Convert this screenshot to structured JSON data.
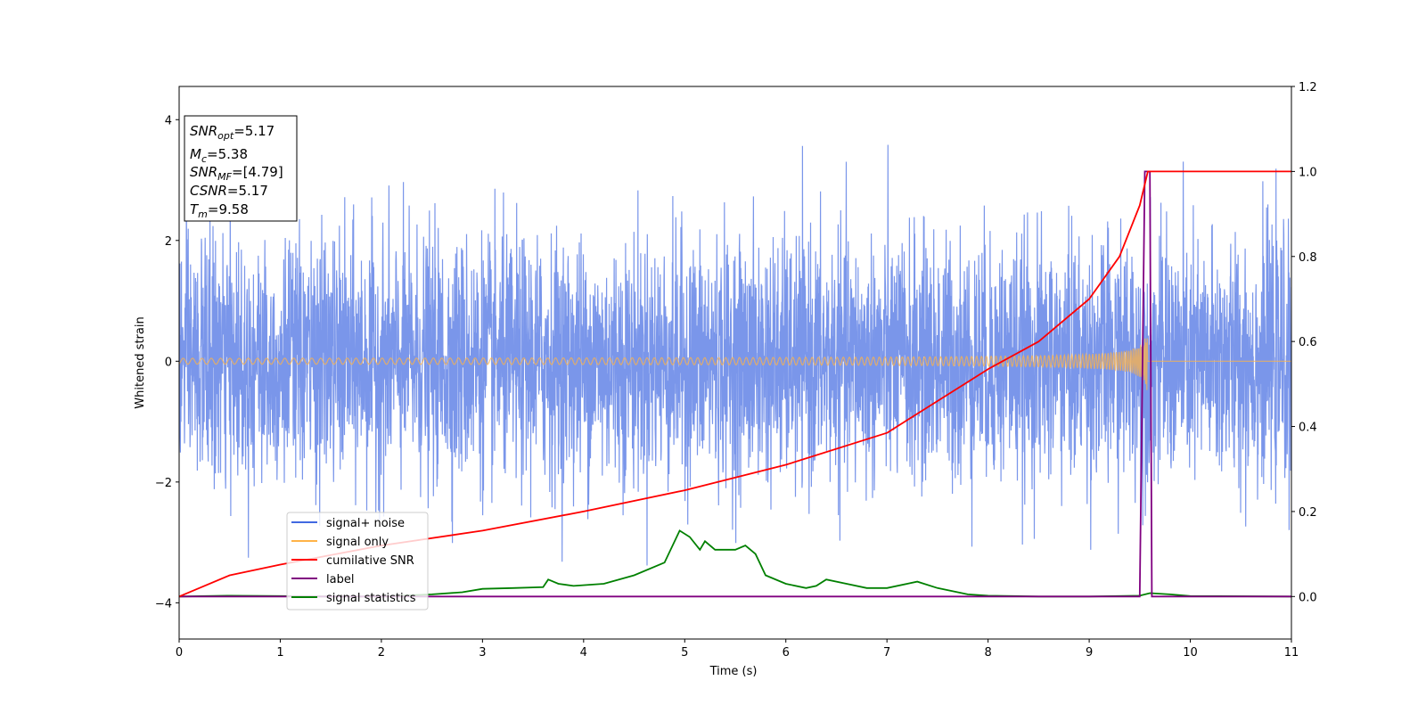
{
  "chart_data": {
    "type": "line",
    "xlabel": "Time (s)",
    "ylabel": "Whitened strain",
    "xlim": [
      0,
      11
    ],
    "ylim_left": [
      -4.6,
      4.55
    ],
    "ylim_right": [
      -0.1,
      1.2
    ],
    "x_ticks": [
      "0",
      "1",
      "2",
      "3",
      "4",
      "5",
      "6",
      "7",
      "8",
      "9",
      "10",
      "11"
    ],
    "y_ticks_left": [
      "−4",
      "−2",
      "0",
      "2",
      "4"
    ],
    "y_ticks_right": [
      "0.0",
      "0.2",
      "0.4",
      "0.6",
      "0.8",
      "1.0",
      "1.2"
    ],
    "legend_position": "lower-left",
    "grid": false,
    "series": [
      {
        "name": "signal+ noise",
        "axis": "left",
        "color": "#4169e1",
        "description": "whitened noise, approx. zero mean, unit std, peaks to about ±4",
        "noise_sigma": 1.0,
        "points_per_second": 400
      },
      {
        "name": "signal only",
        "axis": "left",
        "color": "#ffb347",
        "description": "chirp ending near t = 9.58 s, amplitude growing from ~0.03 to ~0.6",
        "amplitude_start": 0.03,
        "amplitude_end": 0.6,
        "t_merge": 9.58
      },
      {
        "name": "cumilative SNR",
        "axis": "right",
        "color": "#ff0000",
        "points": [
          [
            0,
            0.0
          ],
          [
            0.5,
            0.05
          ],
          [
            1,
            0.075
          ],
          [
            2,
            0.12
          ],
          [
            3,
            0.155
          ],
          [
            4,
            0.2
          ],
          [
            5,
            0.25
          ],
          [
            6,
            0.31
          ],
          [
            7,
            0.385
          ],
          [
            8,
            0.535
          ],
          [
            8.5,
            0.6
          ],
          [
            9,
            0.7
          ],
          [
            9.3,
            0.8
          ],
          [
            9.5,
            0.92
          ],
          [
            9.58,
            1.0
          ],
          [
            11,
            1.0
          ]
        ]
      },
      {
        "name": "label",
        "axis": "right",
        "color": "#800080",
        "points": [
          [
            0,
            0.0
          ],
          [
            9.5,
            0.0
          ],
          [
            9.55,
            1.0
          ],
          [
            9.6,
            1.0
          ],
          [
            9.62,
            0.0
          ],
          [
            11,
            0.0
          ]
        ]
      },
      {
        "name": "signal statistics",
        "axis": "right",
        "color": "#008000",
        "points": [
          [
            0,
            0.0
          ],
          [
            0.5,
            0.002
          ],
          [
            1.0,
            0.001
          ],
          [
            1.5,
            0.0
          ],
          [
            2.0,
            0.0
          ],
          [
            2.5,
            0.005
          ],
          [
            2.8,
            0.01
          ],
          [
            3.0,
            0.018
          ],
          [
            3.3,
            0.02
          ],
          [
            3.6,
            0.022
          ],
          [
            3.65,
            0.04
          ],
          [
            3.75,
            0.03
          ],
          [
            3.9,
            0.025
          ],
          [
            4.2,
            0.03
          ],
          [
            4.5,
            0.05
          ],
          [
            4.8,
            0.08
          ],
          [
            4.95,
            0.155
          ],
          [
            5.05,
            0.14
          ],
          [
            5.15,
            0.11
          ],
          [
            5.2,
            0.13
          ],
          [
            5.3,
            0.11
          ],
          [
            5.5,
            0.11
          ],
          [
            5.6,
            0.12
          ],
          [
            5.7,
            0.1
          ],
          [
            5.8,
            0.05
          ],
          [
            6.0,
            0.03
          ],
          [
            6.2,
            0.02
          ],
          [
            6.3,
            0.025
          ],
          [
            6.4,
            0.04
          ],
          [
            6.6,
            0.03
          ],
          [
            6.8,
            0.02
          ],
          [
            7.0,
            0.02
          ],
          [
            7.2,
            0.03
          ],
          [
            7.3,
            0.035
          ],
          [
            7.5,
            0.02
          ],
          [
            7.8,
            0.005
          ],
          [
            8.0,
            0.002
          ],
          [
            8.5,
            0.0
          ],
          [
            9.0,
            0.0
          ],
          [
            9.5,
            0.002
          ],
          [
            9.6,
            0.008
          ],
          [
            9.8,
            0.005
          ],
          [
            10.0,
            0.001
          ],
          [
            11.0,
            0.0
          ]
        ]
      }
    ]
  },
  "stats_box": {
    "snr_opt": {
      "main": "SNR",
      "sub": "opt",
      "value": "=5.17"
    },
    "mc": {
      "main": "M",
      "sub": "c",
      "value": "=5.38"
    },
    "snr_mf": {
      "main": "SNR",
      "sub": "MF",
      "value": "=[4.79]"
    },
    "csnr": {
      "main": "CSNR",
      "value": "=5.17"
    },
    "tm": {
      "main": "T",
      "sub": "m",
      "value": "=9.58"
    }
  },
  "legend": [
    {
      "label": "signal+ noise",
      "color": "#4169e1"
    },
    {
      "label": "signal only",
      "color": "#ffb347"
    },
    {
      "label": "cumilative SNR",
      "color": "#ff0000"
    },
    {
      "label": "label",
      "color": "#800080"
    },
    {
      "label": "signal statistics",
      "color": "#008000"
    }
  ]
}
